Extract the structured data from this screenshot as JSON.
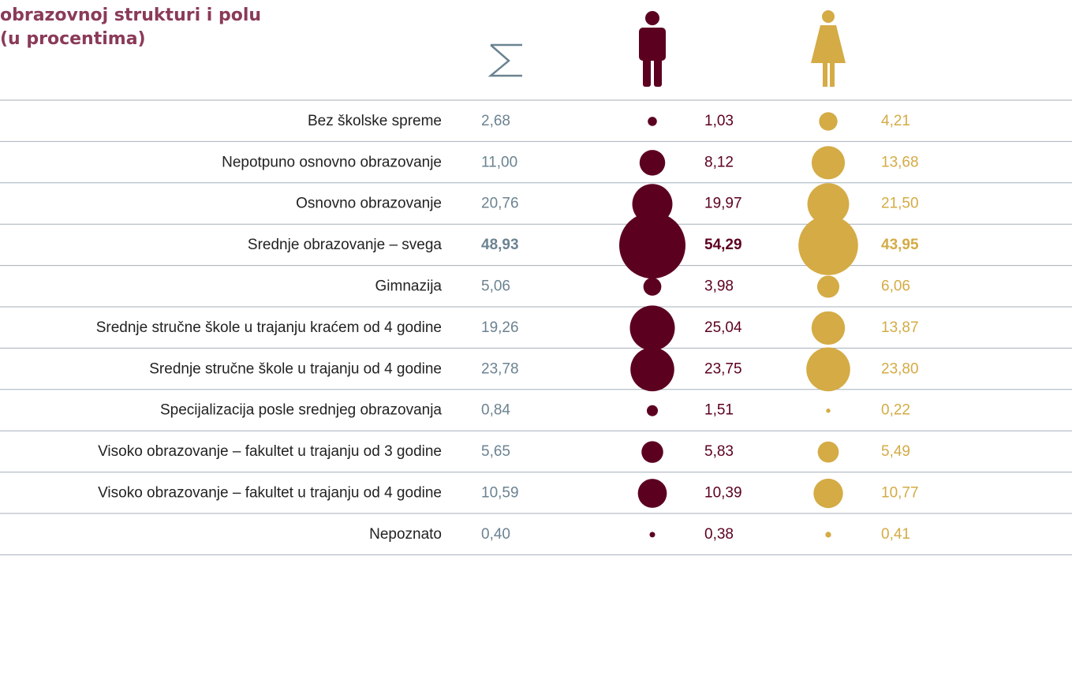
{
  "title_lines": [
    "obrazovnoj strukturi i polu",
    "(u procentima)"
  ],
  "rows": [
    {
      "label": "Bez školske spreme",
      "total": "2,68",
      "male": 1.03,
      "male_label": "1,03",
      "female": 4.21,
      "female_label": "4,21"
    },
    {
      "label": "Nepotpuno osnovno obrazovanje",
      "total": "11,00",
      "male": 8.12,
      "male_label": "8,12",
      "female": 13.68,
      "female_label": "13,68"
    },
    {
      "label": "Osnovno obrazovanje",
      "total": "20,76",
      "male": 19.97,
      "male_label": "19,97",
      "female": 21.5,
      "female_label": "21,50"
    },
    {
      "label": "Srednje obrazovanje – svega",
      "total": "48,93",
      "male": 54.29,
      "male_label": "54,29",
      "female": 43.95,
      "female_label": "43,95",
      "bold": true
    },
    {
      "label": "Gimnazija",
      "total": "5,06",
      "male": 3.98,
      "male_label": "3,98",
      "female": 6.06,
      "female_label": "6,06"
    },
    {
      "label": "Srednje stručne škole u trajanju kraćem od 4 godine",
      "total": "19,26",
      "male": 25.04,
      "male_label": "25,04",
      "female": 13.87,
      "female_label": "13,87"
    },
    {
      "label": "Srednje stručne škole u trajanju od 4 godine",
      "total": "23,78",
      "male": 23.75,
      "male_label": "23,75",
      "female": 23.8,
      "female_label": "23,80"
    },
    {
      "label": "Specijalizacija posle srednjeg obrazovanja",
      "total": "0,84",
      "male": 1.51,
      "male_label": "1,51",
      "female": 0.22,
      "female_label": "0,22"
    },
    {
      "label": "Visoko obrazovanje – fakultet u trajanju od 3 godine",
      "total": "5,65",
      "male": 5.83,
      "male_label": "5,83",
      "female": 5.49,
      "female_label": "5,49"
    },
    {
      "label": "Visoko obrazovanje – fakultet u trajanju od 4 godine",
      "total": "10,59",
      "male": 10.39,
      "male_label": "10,39",
      "female": 10.77,
      "female_label": "10,77"
    },
    {
      "label": "Nepoznato",
      "total": "0,40",
      "male": 0.38,
      "male_label": "0,38",
      "female": 0.41,
      "female_label": "0,41"
    }
  ],
  "colors": {
    "total": "#6b8391",
    "male": "#5c0020",
    "female": "#d4ab45"
  }
}
